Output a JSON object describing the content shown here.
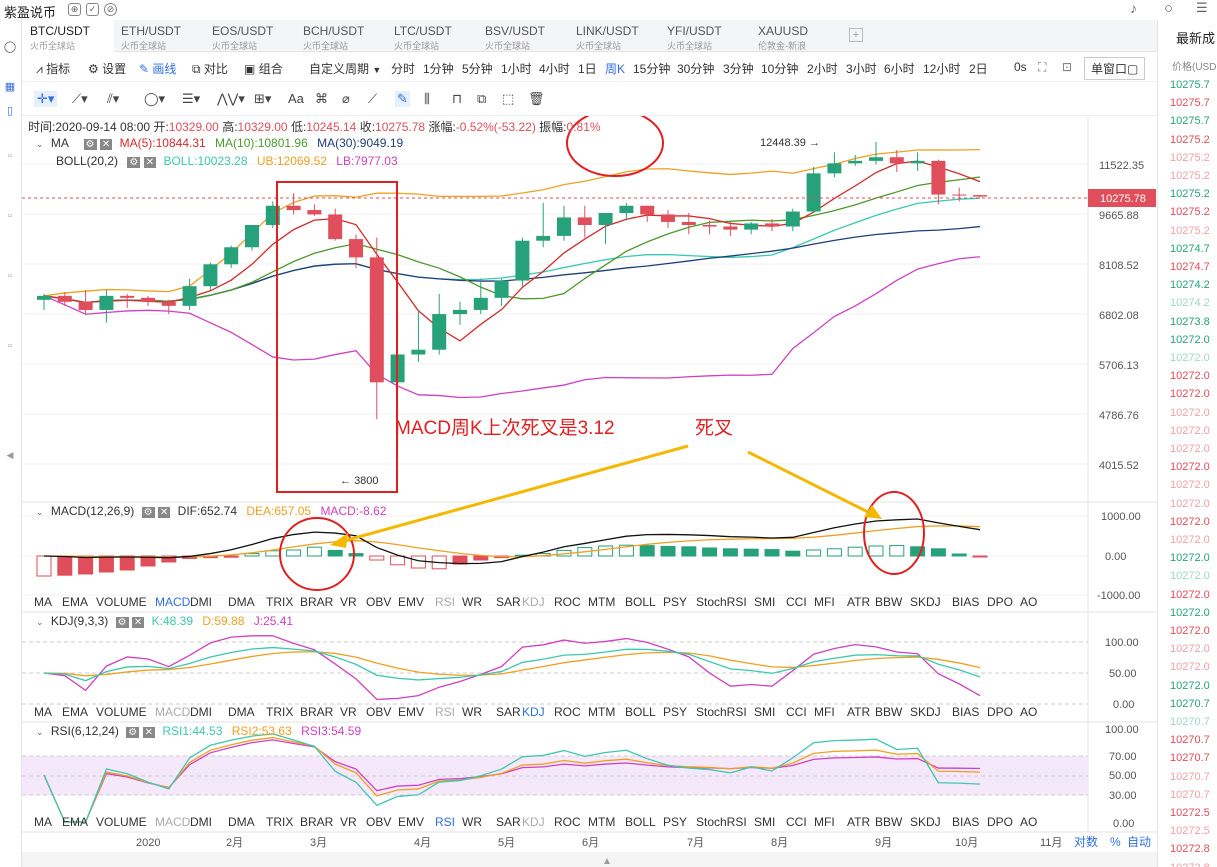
{
  "app": {
    "title": "紫盈说币"
  },
  "tabs": [
    {
      "symbol": "BTC/USDT",
      "exchange": "火币全球站",
      "active": true
    },
    {
      "symbol": "ETH/USDT",
      "exchange": "火币全球站"
    },
    {
      "symbol": "EOS/USDT",
      "exchange": "火币全球站"
    },
    {
      "symbol": "BCH/USDT",
      "exchange": "火币全球站"
    },
    {
      "symbol": "LTC/USDT",
      "exchange": "火币全球站"
    },
    {
      "symbol": "BSV/USDT",
      "exchange": "火币全球站"
    },
    {
      "symbol": "LINK/USDT",
      "exchange": "火币全球站"
    },
    {
      "symbol": "YFI/USDT",
      "exchange": "火币全球站"
    },
    {
      "symbol": "XAUUSD",
      "exchange": "伦敦金-新浪"
    }
  ],
  "toolbar": {
    "indicator": "指标",
    "settings": "设置",
    "draw": "画线",
    "compare": "对比",
    "group": "组合",
    "custom_period": "自定义周期",
    "periods": [
      "分时",
      "1分钟",
      "5分钟",
      "1小时",
      "4小时",
      "1日",
      "周K",
      "15分钟",
      "30分钟",
      "3分钟",
      "10分钟",
      "2小时",
      "3小时",
      "6小时",
      "12小时",
      "2日"
    ],
    "selected_period": "周K",
    "countdown": "0s",
    "window_mode": "单窗口"
  },
  "ohlc": {
    "time_label": "时间:",
    "time": "2020-09-14 08:00",
    "open_label": "开:",
    "open": "10329.00",
    "high_label": "高:",
    "high": "10329.00",
    "low_label": "低:",
    "low": "10245.14",
    "close_label": "收:",
    "close": "10275.78",
    "change_label": "涨幅:",
    "change": "-0.52%(-53.22)",
    "amp_label": "振幅:",
    "amplitude": "0.81%"
  },
  "ma_legend": {
    "name": "MA",
    "ma5": "MA(5):10844.31",
    "ma10": "MA(10):10801.96",
    "ma30": "MA(30):9049.19"
  },
  "boll_legend": {
    "name": "BOLL(20,2)",
    "boll": "BOLL:10023.28",
    "ub": "UB:12069.52",
    "lb": "LB:7977.03"
  },
  "macd_legend": {
    "name": "MACD(12,26,9)",
    "dif": "DIF:652.74",
    "dea": "DEA:657.05",
    "macd": "MACD:-8.62"
  },
  "kdj_legend": {
    "name": "KDJ(9,3,3)",
    "k": "K:48.39",
    "d": "D:59.88",
    "j": "J:25.41"
  },
  "rsi_legend": {
    "name": "RSI(6,12,24)",
    "rsi1": "RSI1:44.53",
    "rsi2": "RSI2:53.63",
    "rsi3": "RSI3:54.59"
  },
  "price_axis": [
    "11522.35",
    "9665.88",
    "8108.52",
    "6802.08",
    "5706.13",
    "4786.76",
    "4015.52"
  ],
  "last_price": "10275.78",
  "high_marker": "12448.39",
  "low_marker": "3800",
  "macd_axis": [
    "1000.00",
    "0.00",
    "-1000.00"
  ],
  "kdj_axis": [
    "100.00",
    "50.00",
    "0.00"
  ],
  "rsi_axis": [
    "100.00",
    "70.00",
    "50.00",
    "30.00",
    "0.00"
  ],
  "indicator_list": [
    "MA",
    "EMA",
    "VOLUME",
    "MACD",
    "DMI",
    "DMA",
    "TRIX",
    "BRAR",
    "VR",
    "OBV",
    "EMV",
    "RSI",
    "WR",
    "SAR",
    "KDJ",
    "ROC",
    "MTM",
    "BOLL",
    "PSY",
    "StochRSI",
    "SMI",
    "CCI",
    "MFI",
    "ATR",
    "BBW",
    "SKDJ",
    "BIAS",
    "DPO",
    "AO"
  ],
  "time_axis": [
    "2020",
    "2月",
    "3月",
    "4月",
    "5月",
    "6月",
    "7月",
    "8月",
    "9月",
    "10月",
    "11月"
  ],
  "bottom_controls": {
    "log": "对数",
    "percent": "%",
    "auto": "自动"
  },
  "annotations": {
    "macd_note": "MACD周K上次死叉是3.12",
    "death_cross": "死叉"
  },
  "right_panel": {
    "title": "最新成",
    "header": "价格(USD",
    "rows": [
      {
        "price": "10275.7",
        "color": "#27a17a"
      },
      {
        "price": "10275.7",
        "color": "#e04d5b"
      },
      {
        "price": "10275.7",
        "color": "#27a17a"
      },
      {
        "price": "10275.2",
        "color": "#e04d5b"
      },
      {
        "price": "10275.2",
        "color": "#f0a0a8"
      },
      {
        "price": "10275.2",
        "color": "#f0a0a8"
      },
      {
        "price": "10275.2",
        "color": "#27a17a"
      },
      {
        "price": "10275.2",
        "color": "#e04d5b"
      },
      {
        "price": "10275.2",
        "color": "#f0a0a8"
      },
      {
        "price": "10274.7",
        "color": "#27a17a"
      },
      {
        "price": "10274.7",
        "color": "#e04d5b"
      },
      {
        "price": "10274.2",
        "color": "#27a17a"
      },
      {
        "price": "10274.2",
        "color": "#a0d8c4"
      },
      {
        "price": "10273.8",
        "color": "#27a17a"
      },
      {
        "price": "10272.0",
        "color": "#27a17a"
      },
      {
        "price": "10272.0",
        "color": "#a0d8c4"
      },
      {
        "price": "10272.0",
        "color": "#e04d5b"
      },
      {
        "price": "10272.0",
        "color": "#e04d5b"
      },
      {
        "price": "10272.0",
        "color": "#f0a0a8"
      },
      {
        "price": "10272.0",
        "color": "#f0a0a8"
      },
      {
        "price": "10272.0",
        "color": "#f0a0a8"
      },
      {
        "price": "10272.0",
        "color": "#e04d5b"
      },
      {
        "price": "10272.0",
        "color": "#f0a0a8"
      },
      {
        "price": "10272.0",
        "color": "#f0a0a8"
      },
      {
        "price": "10272.0",
        "color": "#e04d5b"
      },
      {
        "price": "10272.0",
        "color": "#f0a0a8"
      },
      {
        "price": "10272.0",
        "color": "#27a17a"
      },
      {
        "price": "10272.0",
        "color": "#a0d8c4"
      },
      {
        "price": "10272.0",
        "color": "#e04d5b"
      },
      {
        "price": "10272.0",
        "color": "#27a17a"
      },
      {
        "price": "10272.0",
        "color": "#e04d5b"
      },
      {
        "price": "10272.0",
        "color": "#f0a0a8"
      },
      {
        "price": "10272.0",
        "color": "#f0a0a8"
      },
      {
        "price": "10272.0",
        "color": "#27a17a"
      },
      {
        "price": "10270.7",
        "color": "#27a17a"
      },
      {
        "price": "10270.7",
        "color": "#a0d8c4"
      },
      {
        "price": "10270.7",
        "color": "#e04d5b"
      },
      {
        "price": "10270.7",
        "color": "#e04d5b"
      },
      {
        "price": "10270.7",
        "color": "#f0a0a8"
      },
      {
        "price": "10270.7",
        "color": "#f0a0a8"
      },
      {
        "price": "10272.5",
        "color": "#e04d5b"
      },
      {
        "price": "10272.5",
        "color": "#f0a0a8"
      },
      {
        "price": "10272.8",
        "color": "#e04d5b"
      },
      {
        "price": "10272.8",
        "color": "#f0a0a8"
      }
    ]
  },
  "colors": {
    "up": "#27a17a",
    "down": "#e04d5b",
    "ma5": "#d42a2a",
    "ma10": "#4c9a2a",
    "ma30": "#1f3f7a",
    "boll": "#3cc8b0",
    "ub": "#f0a020",
    "lb": "#d040c0",
    "accent": "#2f6fe0",
    "annotation": "#e02020",
    "arrow": "#f5b800"
  },
  "chart_data": {
    "type": "candlestick",
    "interval": "1W",
    "candles": [
      [
        7150,
        7300,
        6900,
        7250
      ],
      [
        7250,
        7350,
        7000,
        7100
      ],
      [
        7100,
        7400,
        6800,
        6900
      ],
      [
        6900,
        7400,
        6600,
        7250
      ],
      [
        7250,
        7300,
        6950,
        7200
      ],
      [
        7200,
        7250,
        7000,
        7100
      ],
      [
        7100,
        7150,
        6800,
        7000
      ],
      [
        7000,
        7700,
        6900,
        7500
      ],
      [
        7500,
        8150,
        7400,
        8100
      ],
      [
        8100,
        8650,
        8000,
        8600
      ],
      [
        8600,
        9300,
        8500,
        9300
      ],
      [
        9300,
        10100,
        9200,
        9950
      ],
      [
        9950,
        10400,
        9650,
        9800
      ],
      [
        9800,
        10000,
        9600,
        9650
      ],
      [
        9650,
        9850,
        8800,
        8850
      ],
      [
        8850,
        9000,
        8000,
        8300
      ],
      [
        8300,
        8900,
        4700,
        5350
      ],
      [
        5350,
        6800,
        3800,
        5900
      ],
      [
        5900,
        6900,
        5750,
        6000
      ],
      [
        6000,
        7300,
        5900,
        6800
      ],
      [
        6800,
        7100,
        6550,
        6900
      ],
      [
        6900,
        7700,
        6800,
        7200
      ],
      [
        7200,
        7700,
        7000,
        7650
      ],
      [
        7650,
        8900,
        7500,
        8800
      ],
      [
        8800,
        10050,
        8600,
        8950
      ],
      [
        8950,
        9950,
        8800,
        9550
      ],
      [
        9550,
        9950,
        8900,
        9300
      ],
      [
        9300,
        9700,
        8700,
        9700
      ],
      [
        9700,
        10050,
        9450,
        9950
      ],
      [
        9950,
        9950,
        9400,
        9650
      ],
      [
        9650,
        9800,
        9200,
        9400
      ],
      [
        9400,
        9700,
        9000,
        9300
      ],
      [
        9300,
        9450,
        9000,
        9250
      ],
      [
        9250,
        9400,
        8950,
        9150
      ],
      [
        9150,
        9400,
        9000,
        9350
      ],
      [
        9350,
        9500,
        9100,
        9250
      ],
      [
        9250,
        9850,
        9100,
        9750
      ],
      [
        9750,
        11400,
        9700,
        11150
      ],
      [
        11150,
        12000,
        11000,
        11550
      ],
      [
        11550,
        11900,
        11450,
        11650
      ],
      [
        11650,
        12450,
        11500,
        11800
      ],
      [
        11800,
        12100,
        11200,
        11550
      ],
      [
        11550,
        12000,
        11250,
        11650
      ],
      [
        11650,
        11700,
        10000,
        10350
      ],
      [
        10350,
        10600,
        10100,
        10329
      ],
      [
        10329,
        10329,
        10245.14,
        10275.78
      ]
    ],
    "macd_hist": [
      -500,
      -480,
      -450,
      -400,
      -350,
      -250,
      -150,
      -60,
      -40,
      -30,
      60,
      130,
      150,
      220,
      140,
      60,
      -100,
      -220,
      -300,
      -320,
      -200,
      -100,
      -40,
      20,
      60,
      140,
      210,
      250,
      270,
      260,
      240,
      230,
      200,
      180,
      170,
      160,
      120,
      150,
      180,
      220,
      250,
      260,
      230,
      180,
      50,
      -8.62
    ]
  }
}
